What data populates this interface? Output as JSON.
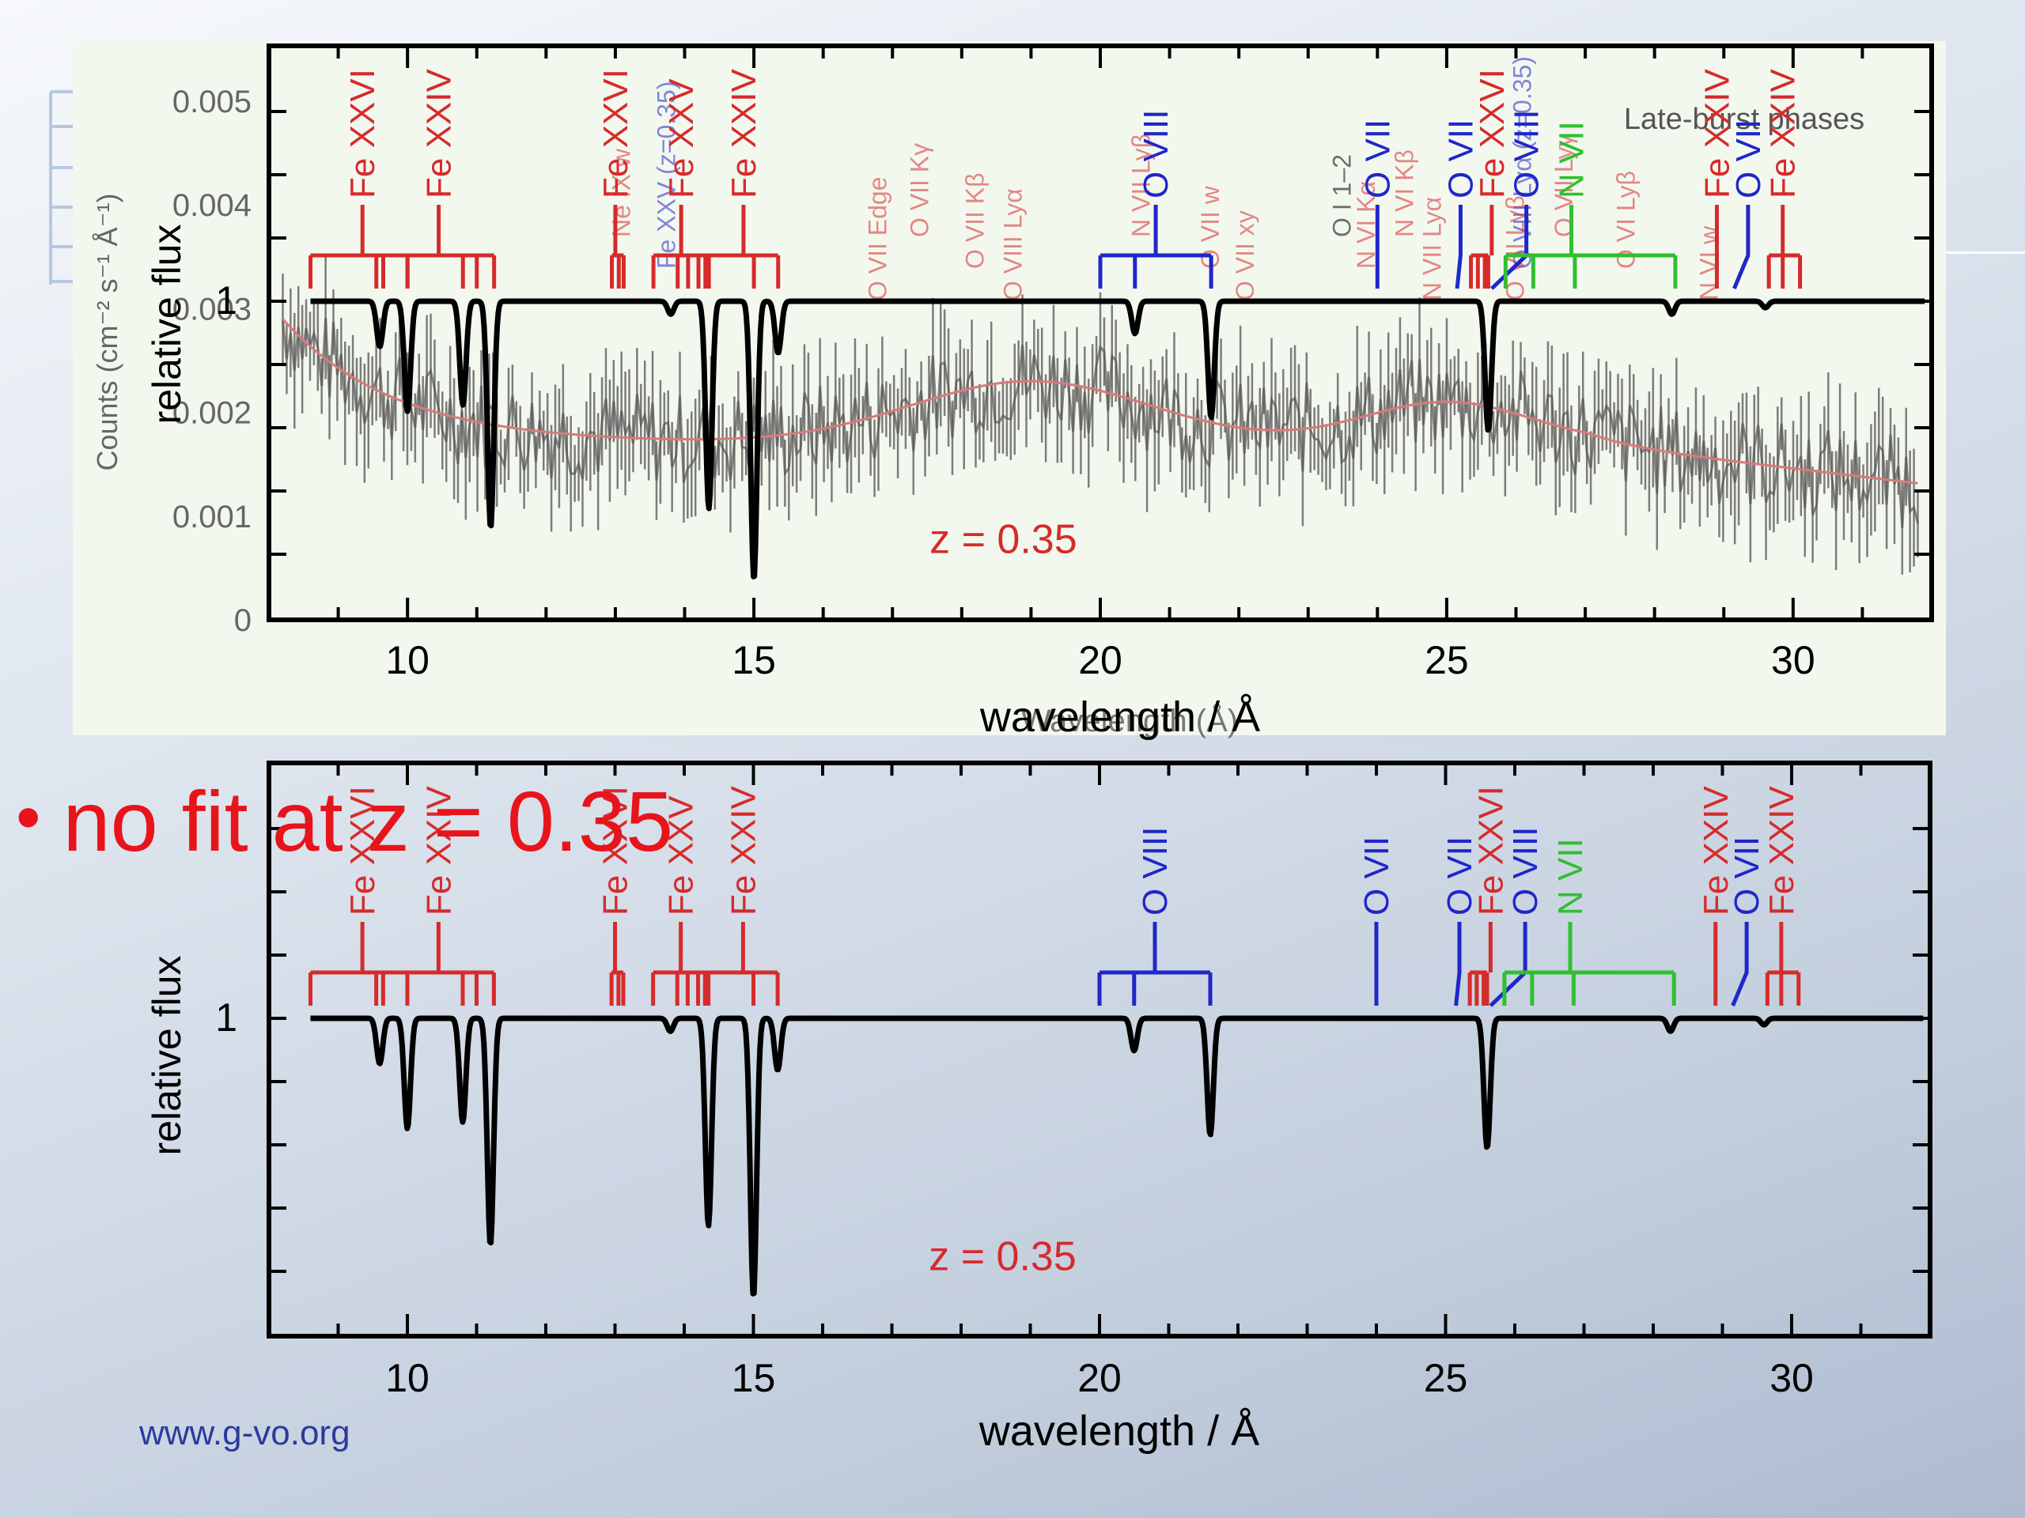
{
  "slide": {
    "bullet": "no fit at z = 0.35",
    "footer": "www.g-vo.org"
  },
  "colors": {
    "fe": "#d62b2b",
    "o": "#1f27c9",
    "n": "#2fc02f",
    "model": "#000000",
    "data": "#555555",
    "data_model": "#d87a7a",
    "bullet": "#e8141b",
    "footer": "#2b3a9c"
  },
  "chart_data": [
    {
      "type": "line",
      "panel": "top-overlay",
      "title": "Late-burst phases",
      "xlabel": "wavelength / Å",
      "xlabel_background": "Wavelength (Å)",
      "ylabel": "relative flux",
      "ylabel_background": "Counts (cm⁻² s⁻¹ Å⁻¹)",
      "xlim": [
        8,
        32
      ],
      "x_ticks": [
        "10",
        "15",
        "20",
        "25",
        "30"
      ],
      "counts_ylim": [
        0,
        0.005
      ],
      "counts_ticks": [
        "0",
        "0.001",
        "0.002",
        "0.003",
        "0.004",
        "0.005"
      ],
      "continuum_label": "1",
      "annotation": "z = 0.35",
      "background_line_labels": [
        {
          "text": "Ne IX w",
          "x": 13.1,
          "color": "fe"
        },
        {
          "text": "Fe XXV (z=0.35)",
          "x": 13.75,
          "color": "o"
        },
        {
          "text": "O VII Edge",
          "x": 16.8,
          "color": "fe"
        },
        {
          "text": "O VII Kγ",
          "x": 17.4,
          "color": "fe"
        },
        {
          "text": "O VII Kβ",
          "x": 18.2,
          "color": "fe"
        },
        {
          "text": "O VIII Lyα",
          "x": 18.75,
          "color": "fe"
        },
        {
          "text": "N VII Lyβ",
          "x": 20.6,
          "color": "fe"
        },
        {
          "text": "O VII w",
          "x": 21.6,
          "color": "fe"
        },
        {
          "text": "O VII xy",
          "x": 22.1,
          "color": "fe"
        },
        {
          "text": "O I 1–2",
          "x": 23.5,
          "color": "model"
        },
        {
          "text": "N VI Kα",
          "x": 23.85,
          "color": "fe"
        },
        {
          "text": "N VII Lyα",
          "x": 24.8,
          "color": "fe"
        },
        {
          "text": "N VI Kβ",
          "x": 24.4,
          "color": "fe"
        },
        {
          "text": "O VIII Lyα (z=0.35)",
          "x": 26.1,
          "color": "o"
        },
        {
          "text": "O VII Lyβ",
          "x": 26.0,
          "color": "fe"
        },
        {
          "text": "O VII Lyγ",
          "x": 26.7,
          "color": "fe"
        },
        {
          "text": "O VI Lyβ",
          "x": 27.6,
          "color": "fe"
        },
        {
          "text": "N VI w",
          "x": 28.8,
          "color": "fe"
        }
      ]
    },
    {
      "type": "line",
      "panel": "bottom",
      "xlabel": "wavelength / Å",
      "ylabel": "relative flux",
      "xlim": [
        8,
        32
      ],
      "x_ticks": [
        "10",
        "15",
        "20",
        "25",
        "30"
      ],
      "continuum_label": "1",
      "annotation": "z = 0.35",
      "series": [
        {
          "kind": "absorption_model",
          "continuum": 1.0,
          "lines": [
            {
              "x": 9.6,
              "depth": 0.07
            },
            {
              "x": 10.0,
              "depth": 0.17
            },
            {
              "x": 10.8,
              "depth": 0.16
            },
            {
              "x": 11.2,
              "depth": 0.35
            },
            {
              "x": 13.8,
              "depth": 0.02
            },
            {
              "x": 14.35,
              "depth": 0.32
            },
            {
              "x": 15.0,
              "depth": 0.43
            },
            {
              "x": 15.35,
              "depth": 0.08
            },
            {
              "x": 20.5,
              "depth": 0.05
            },
            {
              "x": 21.6,
              "depth": 0.18
            },
            {
              "x": 25.6,
              "depth": 0.2
            },
            {
              "x": 28.25,
              "depth": 0.02
            },
            {
              "x": 29.6,
              "depth": 0.01
            }
          ]
        }
      ],
      "line_groups": [
        {
          "ion": "Fe XXVI",
          "element": "fe",
          "label_x": 9.35,
          "ticks": [
            8.6,
            9.55,
            9.65,
            10.0
          ]
        },
        {
          "ion": "Fe XXIV",
          "element": "fe",
          "label_x": 10.45,
          "ticks": [
            10.0,
            10.8,
            11.0,
            11.25
          ]
        },
        {
          "ion": "Fe XXVI",
          "element": "fe",
          "label_x": 13.0,
          "ticks": [
            12.95,
            13.05,
            13.12
          ]
        },
        {
          "ion": "Fe XXV",
          "element": "fe",
          "label_x": 13.95,
          "ticks": [
            13.55,
            13.9,
            14.05,
            14.2,
            14.35
          ]
        },
        {
          "ion": "Fe XXIV",
          "element": "fe",
          "label_x": 14.85,
          "ticks": [
            14.3,
            15.0,
            15.35
          ]
        },
        {
          "ion": "O VIII",
          "element": "o",
          "label_x": 20.8,
          "ticks": [
            20.0,
            20.5,
            21.6
          ]
        },
        {
          "ion": "O VII",
          "element": "o",
          "label_x": 24.0,
          "ticks": [
            24.0
          ]
        },
        {
          "ion": "O VII",
          "element": "o",
          "label_x": 25.2,
          "ticks": [
            25.15
          ]
        },
        {
          "ion": "Fe XXVI",
          "element": "fe",
          "label_x": 25.65,
          "ticks": [
            25.35,
            25.45,
            25.55,
            25.6
          ]
        },
        {
          "ion": "O VIII",
          "element": "o",
          "label_x": 26.15,
          "ticks": [
            25.65
          ]
        },
        {
          "ion": "N VII",
          "element": "n",
          "label_x": 26.8,
          "ticks": [
            25.85,
            26.25,
            26.85,
            28.3
          ]
        },
        {
          "ion": "Fe XXIV",
          "element": "fe",
          "label_x": 28.9,
          "ticks": [
            28.9
          ]
        },
        {
          "ion": "O VII",
          "element": "o",
          "label_x": 29.35,
          "ticks": [
            29.15
          ]
        },
        {
          "ion": "Fe XXIV",
          "element": "fe",
          "label_x": 29.85,
          "ticks": [
            29.65,
            29.85,
            30.1
          ]
        }
      ]
    }
  ]
}
